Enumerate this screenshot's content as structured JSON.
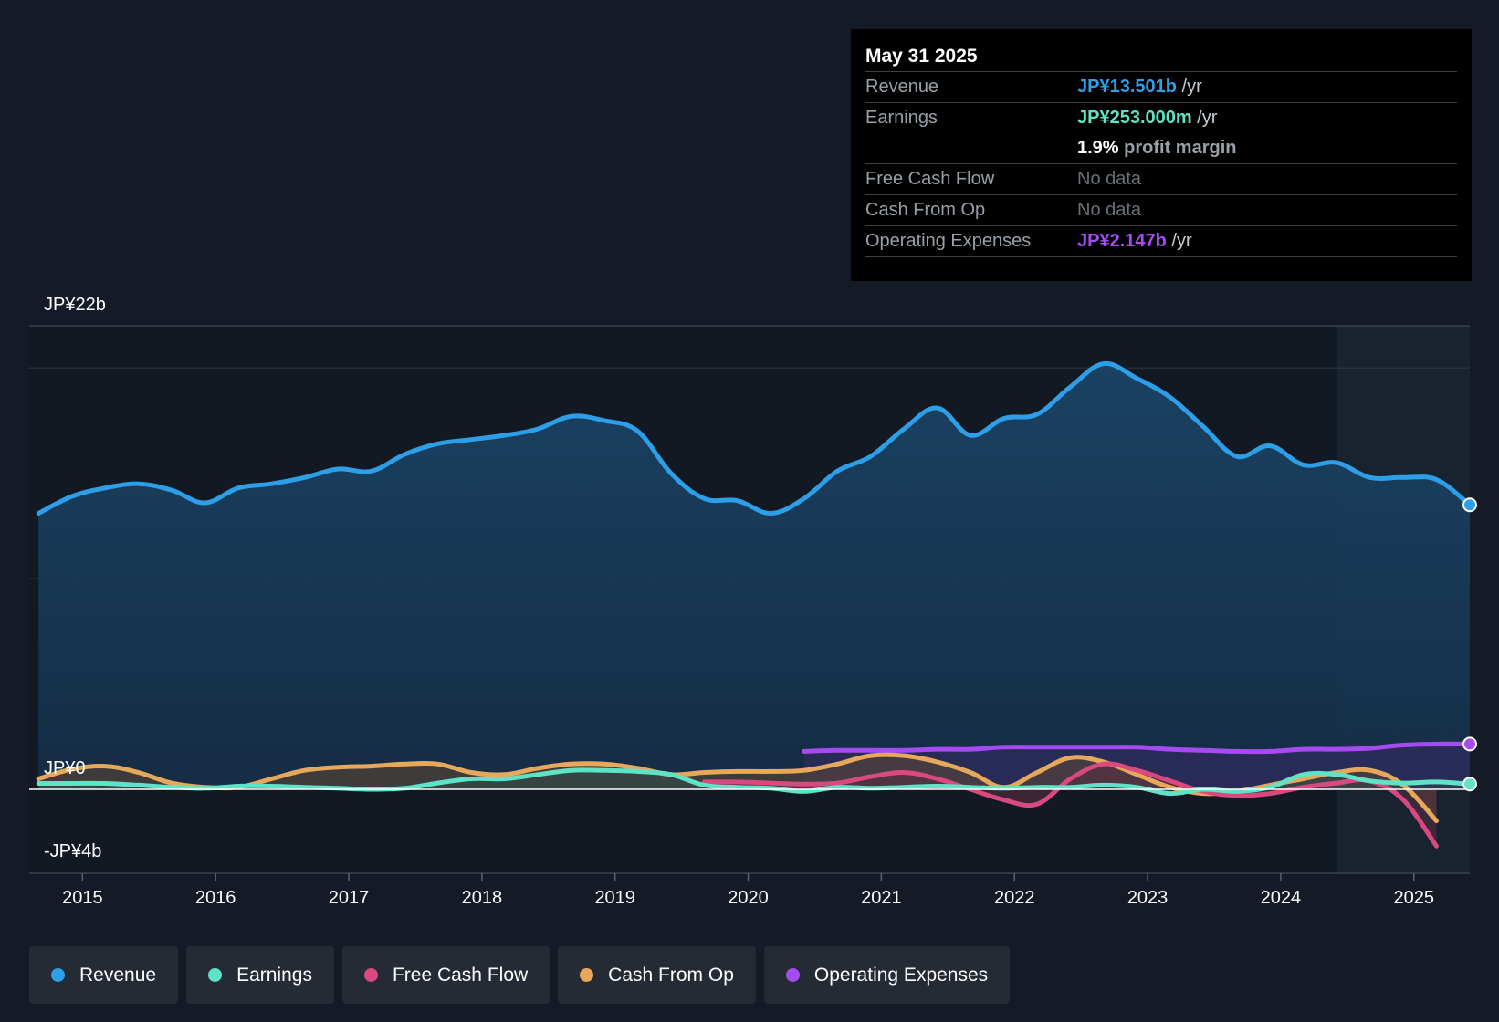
{
  "tooltip": {
    "date": "May 31 2025",
    "rows": {
      "revenue": {
        "label": "Revenue",
        "value": "JP¥13.501b",
        "unit": "/yr"
      },
      "earnings": {
        "label": "Earnings",
        "value": "JP¥253.000m",
        "unit": "/yr"
      },
      "margin": {
        "value": "1.9%",
        "unit": "profit margin"
      },
      "fcf": {
        "label": "Free Cash Flow",
        "value": "No data"
      },
      "cfo": {
        "label": "Cash From Op",
        "value": "No data"
      },
      "opex": {
        "label": "Operating Expenses",
        "value": "JP¥2.147b",
        "unit": "/yr"
      }
    }
  },
  "legend": [
    {
      "label": "Revenue",
      "color": "#2d9ee8"
    },
    {
      "label": "Earnings",
      "color": "#5fe3c6"
    },
    {
      "label": "Free Cash Flow",
      "color": "#d9497f"
    },
    {
      "label": "Cash From Op",
      "color": "#e8a85c"
    },
    {
      "label": "Operating Expenses",
      "color": "#a64bf0"
    }
  ],
  "colors": {
    "revenue": "#2d9ee8",
    "earnings": "#5fe3c6",
    "fcf": "#d9497f",
    "cfo": "#e8a85c",
    "opex": "#a64bf0",
    "grid": "#2e3540",
    "zero": "#ffffff"
  },
  "chart_data": {
    "type": "area",
    "title": "",
    "y_top_label": "JP¥22b",
    "y_zero_label": "JP¥0",
    "y_bottom_label": "-JP¥4b",
    "ylim": [
      -4,
      22
    ],
    "xlim": [
      2014.6,
      2025.42
    ],
    "forecast_start": 2024.42,
    "x_ticks": [
      {
        "value": 2015,
        "label": "2015"
      },
      {
        "value": 2016,
        "label": "2016"
      },
      {
        "value": 2017,
        "label": "2017"
      },
      {
        "value": 2018,
        "label": "2018"
      },
      {
        "value": 2019,
        "label": "2019"
      },
      {
        "value": 2020,
        "label": "2020"
      },
      {
        "value": 2021,
        "label": "2021"
      },
      {
        "value": 2022,
        "label": "2022"
      },
      {
        "value": 2023,
        "label": "2023"
      },
      {
        "value": 2024,
        "label": "2024"
      },
      {
        "value": 2025,
        "label": "2025"
      }
    ],
    "gridlines": [
      20,
      10
    ],
    "series": [
      {
        "key": "revenue",
        "name": "Revenue",
        "x": [
          2014.67,
          2014.92,
          2015.17,
          2015.42,
          2015.67,
          2015.92,
          2016.17,
          2016.42,
          2016.67,
          2016.92,
          2017.17,
          2017.42,
          2017.67,
          2017.92,
          2018.17,
          2018.42,
          2018.67,
          2018.92,
          2019.17,
          2019.42,
          2019.67,
          2019.92,
          2020.17,
          2020.42,
          2020.67,
          2020.92,
          2021.17,
          2021.42,
          2021.67,
          2021.92,
          2022.17,
          2022.42,
          2022.67,
          2022.92,
          2023.17,
          2023.42,
          2023.67,
          2023.92,
          2024.17,
          2024.42,
          2024.67,
          2024.92,
          2025.17,
          2025.42
        ],
        "values": [
          13.1,
          13.9,
          14.3,
          14.5,
          14.2,
          13.6,
          14.3,
          14.5,
          14.8,
          15.2,
          15.1,
          15.9,
          16.4,
          16.6,
          16.8,
          17.1,
          17.7,
          17.5,
          17.0,
          15.0,
          13.8,
          13.7,
          13.1,
          13.8,
          15.1,
          15.8,
          17.1,
          18.1,
          16.8,
          17.6,
          17.8,
          19.1,
          20.2,
          19.5,
          18.6,
          17.2,
          15.8,
          16.3,
          15.4,
          15.5,
          14.8,
          14.8,
          14.7,
          13.5
        ]
      },
      {
        "key": "earnings",
        "name": "Earnings",
        "x": [
          2014.67,
          2014.92,
          2015.17,
          2015.42,
          2015.67,
          2015.92,
          2016.17,
          2016.42,
          2016.67,
          2016.92,
          2017.17,
          2017.42,
          2017.67,
          2017.92,
          2018.17,
          2018.42,
          2018.67,
          2018.92,
          2019.17,
          2019.42,
          2019.67,
          2019.92,
          2020.17,
          2020.42,
          2020.67,
          2020.92,
          2021.17,
          2021.42,
          2021.67,
          2021.92,
          2022.17,
          2022.42,
          2022.67,
          2022.92,
          2023.17,
          2023.42,
          2023.67,
          2023.92,
          2024.17,
          2024.42,
          2024.67,
          2024.92,
          2025.17,
          2025.42
        ],
        "values": [
          0.28,
          0.28,
          0.28,
          0.2,
          0.1,
          0.05,
          0.15,
          0.15,
          0.1,
          0.05,
          0.0,
          0.05,
          0.3,
          0.5,
          0.5,
          0.7,
          0.9,
          0.9,
          0.85,
          0.7,
          0.2,
          0.1,
          0.05,
          -0.1,
          0.1,
          0.05,
          0.1,
          0.15,
          0.1,
          0.05,
          0.1,
          0.1,
          0.2,
          0.1,
          -0.2,
          0.0,
          -0.1,
          0.1,
          0.7,
          0.7,
          0.4,
          0.3,
          0.35,
          0.25
        ]
      },
      {
        "key": "fcf",
        "name": "Free Cash Flow",
        "x": [
          2019.67,
          2019.92,
          2020.17,
          2020.42,
          2020.67,
          2020.92,
          2021.17,
          2021.42,
          2021.67,
          2021.92,
          2022.17,
          2022.42,
          2022.67,
          2022.92,
          2023.17,
          2023.42,
          2023.67,
          2023.92,
          2024.17,
          2024.42,
          2024.67,
          2024.92,
          2025.17
        ],
        "values": [
          0.35,
          0.35,
          0.3,
          0.25,
          0.3,
          0.6,
          0.8,
          0.5,
          0.0,
          -0.5,
          -0.7,
          0.5,
          1.2,
          0.9,
          0.4,
          -0.1,
          -0.3,
          -0.2,
          0.1,
          0.3,
          0.4,
          -0.5,
          -2.7
        ]
      },
      {
        "key": "cfo",
        "name": "Cash From Op",
        "x": [
          2014.67,
          2014.92,
          2015.17,
          2015.42,
          2015.67,
          2015.92,
          2016.17,
          2016.42,
          2016.67,
          2016.92,
          2017.17,
          2017.42,
          2017.67,
          2017.92,
          2018.17,
          2018.42,
          2018.67,
          2018.92,
          2019.17,
          2019.42,
          2019.67,
          2019.92,
          2020.17,
          2020.42,
          2020.67,
          2020.92,
          2021.17,
          2021.42,
          2021.67,
          2021.92,
          2022.17,
          2022.42,
          2022.67,
          2022.92,
          2023.17,
          2023.42,
          2023.67,
          2023.92,
          2024.17,
          2024.42,
          2024.67,
          2024.92,
          2025.17
        ],
        "values": [
          0.5,
          0.95,
          1.1,
          0.8,
          0.3,
          0.1,
          0.1,
          0.5,
          0.9,
          1.05,
          1.1,
          1.2,
          1.2,
          0.8,
          0.7,
          1.0,
          1.2,
          1.2,
          1.0,
          0.7,
          0.8,
          0.85,
          0.85,
          0.9,
          1.2,
          1.6,
          1.6,
          1.3,
          0.8,
          0.1,
          0.8,
          1.5,
          1.3,
          0.7,
          0.1,
          -0.2,
          -0.1,
          0.2,
          0.5,
          0.8,
          0.9,
          0.2,
          -1.5
        ]
      },
      {
        "key": "opex",
        "name": "Operating Expenses",
        "x": [
          2020.42,
          2020.67,
          2020.92,
          2021.17,
          2021.42,
          2021.67,
          2021.92,
          2022.17,
          2022.42,
          2022.67,
          2022.92,
          2023.17,
          2023.42,
          2023.67,
          2023.92,
          2024.17,
          2024.42,
          2024.67,
          2024.92,
          2025.17,
          2025.42
        ],
        "values": [
          1.8,
          1.85,
          1.85,
          1.85,
          1.9,
          1.9,
          2.0,
          2.0,
          2.0,
          2.0,
          2.0,
          1.9,
          1.85,
          1.8,
          1.8,
          1.9,
          1.9,
          1.95,
          2.1,
          2.15,
          2.15
        ]
      }
    ]
  }
}
